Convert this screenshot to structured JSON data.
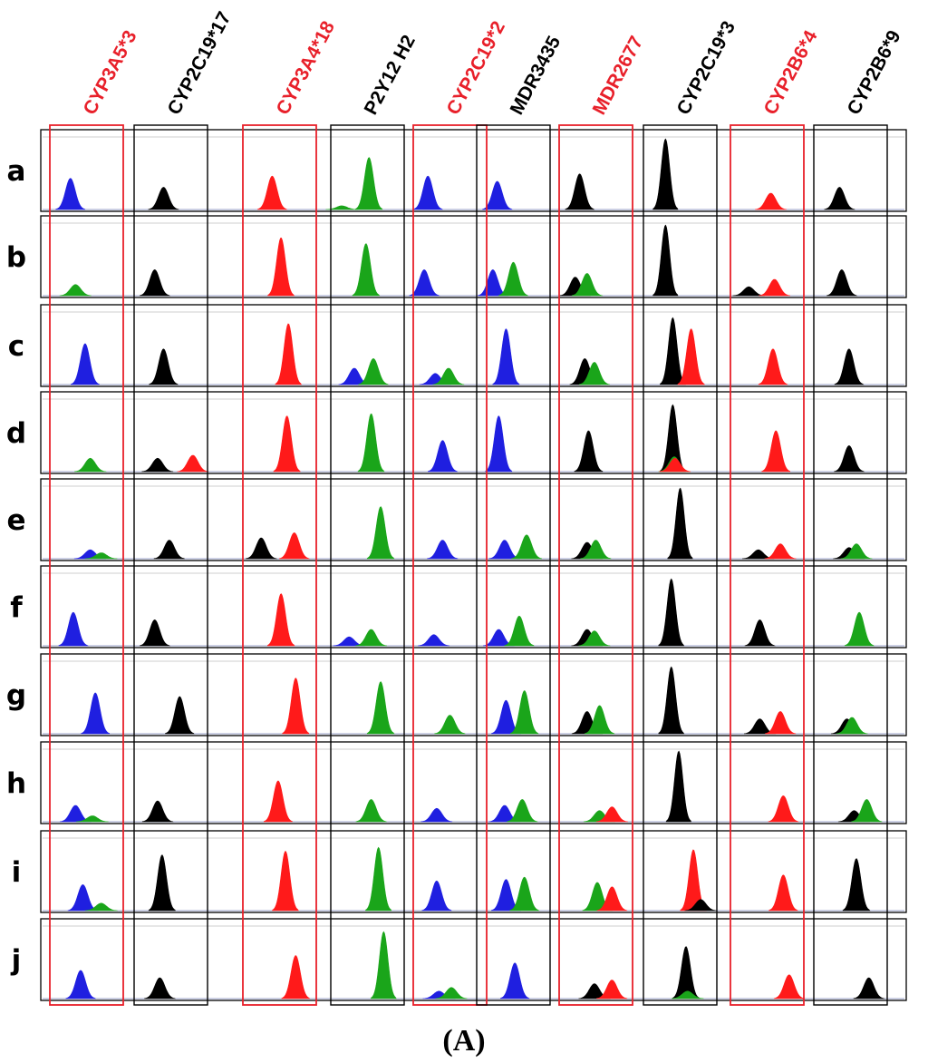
{
  "figure": {
    "panel_label": "(A)",
    "highlight_color": "#e8202a",
    "label_colors": {
      "highlight": "#e8202a",
      "normal": "#000000"
    },
    "peak_colors": {
      "blue": "#1f1fe0",
      "green": "#1aa51a",
      "red": "#ff1a1a",
      "black": "#000000"
    }
  },
  "chart_data": {
    "type": "electropherogram-grid",
    "title": "",
    "columns": [
      {
        "label": "CYP3A5*3",
        "highlight": true
      },
      {
        "label": "CYP2C19*17",
        "highlight": false
      },
      {
        "label": "CYP3A4*18",
        "highlight": true
      },
      {
        "label": "P2Y12 H2",
        "highlight": false
      },
      {
        "label": "CYP2C19*2",
        "highlight": true
      },
      {
        "label": "MDR3435",
        "highlight": false
      },
      {
        "label": "MDR2677",
        "highlight": true
      },
      {
        "label": "CYP2C19*3",
        "highlight": false
      },
      {
        "label": "CYP2B6*4",
        "highlight": true
      },
      {
        "label": "CYP2B6*9",
        "highlight": false
      }
    ],
    "rows": [
      "a",
      "b",
      "c",
      "d",
      "e",
      "f",
      "g",
      "h",
      "i",
      "j"
    ],
    "peak_encoding": "each peak = [color, relative position within cell 0-1, relative height 0-1]",
    "peaks": [
      [
        [
          [
            "blue",
            0.28,
            0.42
          ]
        ],
        [
          [
            "black",
            0.4,
            0.3
          ]
        ],
        [
          [
            "red",
            0.4,
            0.45
          ]
        ],
        [
          [
            "green",
            0.15,
            0.05
          ],
          [
            "green",
            0.52,
            0.7
          ]
        ],
        [
          [
            "blue",
            0.2,
            0.45
          ]
        ],
        [
          [
            "blue",
            0.28,
            0.38
          ]
        ],
        [
          [
            "black",
            0.28,
            0.48
          ]
        ],
        [
          [
            "black",
            0.3,
            0.95
          ]
        ],
        [
          [
            "red",
            0.55,
            0.22
          ]
        ],
        [
          [
            "black",
            0.35,
            0.3
          ]
        ]
      ],
      [
        [
          [
            "green",
            0.35,
            0.15
          ]
        ],
        [
          [
            "black",
            0.28,
            0.35
          ]
        ],
        [
          [
            "red",
            0.52,
            0.78
          ]
        ],
        [
          [
            "green",
            0.48,
            0.7
          ]
        ],
        [
          [
            "blue",
            0.15,
            0.35
          ]
        ],
        [
          [
            "blue",
            0.22,
            0.35
          ],
          [
            "green",
            0.5,
            0.45
          ]
        ],
        [
          [
            "black",
            0.22,
            0.25
          ],
          [
            "green",
            0.38,
            0.3
          ]
        ],
        [
          [
            "black",
            0.3,
            0.95
          ]
        ],
        [
          [
            "black",
            0.25,
            0.12
          ],
          [
            "red",
            0.6,
            0.22
          ]
        ],
        [
          [
            "black",
            0.38,
            0.35
          ]
        ]
      ],
      [
        [
          [
            "blue",
            0.48,
            0.55
          ]
        ],
        [
          [
            "black",
            0.4,
            0.48
          ]
        ],
        [
          [
            "red",
            0.62,
            0.82
          ]
        ],
        [
          [
            "blue",
            0.32,
            0.22
          ],
          [
            "green",
            0.58,
            0.35
          ]
        ],
        [
          [
            "blue",
            0.3,
            0.15
          ],
          [
            "green",
            0.48,
            0.22
          ]
        ],
        [
          [
            "blue",
            0.4,
            0.75
          ]
        ],
        [
          [
            "black",
            0.35,
            0.35
          ],
          [
            "green",
            0.48,
            0.3
          ]
        ],
        [
          [
            "black",
            0.4,
            0.9
          ],
          [
            "red",
            0.65,
            0.75
          ]
        ],
        [
          [
            "red",
            0.58,
            0.48
          ]
        ],
        [
          [
            "black",
            0.48,
            0.48
          ]
        ]
      ],
      [
        [
          [
            "green",
            0.55,
            0.18
          ]
        ],
        [
          [
            "black",
            0.32,
            0.18
          ],
          [
            "red",
            0.8,
            0.22
          ]
        ],
        [
          [
            "red",
            0.6,
            0.75
          ]
        ],
        [
          [
            "green",
            0.55,
            0.78
          ]
        ],
        [
          [
            "blue",
            0.4,
            0.42
          ]
        ],
        [
          [
            "blue",
            0.3,
            0.75
          ]
        ],
        [
          [
            "black",
            0.4,
            0.55
          ]
        ],
        [
          [
            "black",
            0.4,
            0.9
          ],
          [
            "green",
            0.42,
            0.2
          ],
          [
            "red",
            0.43,
            0.18
          ]
        ],
        [
          [
            "red",
            0.62,
            0.55
          ]
        ],
        [
          [
            "black",
            0.48,
            0.35
          ]
        ]
      ],
      [
        [
          [
            "blue",
            0.55,
            0.12
          ],
          [
            "green",
            0.7,
            0.08
          ]
        ],
        [
          [
            "black",
            0.48,
            0.25
          ]
        ],
        [
          [
            "black",
            0.25,
            0.28
          ],
          [
            "red",
            0.7,
            0.35
          ]
        ],
        [
          [
            "green",
            0.68,
            0.7
          ]
        ],
        [
          [
            "blue",
            0.4,
            0.25
          ]
        ],
        [
          [
            "blue",
            0.38,
            0.25
          ],
          [
            "green",
            0.68,
            0.32
          ]
        ],
        [
          [
            "black",
            0.38,
            0.22
          ],
          [
            "green",
            0.5,
            0.25
          ]
        ],
        [
          [
            "black",
            0.5,
            0.95
          ]
        ],
        [
          [
            "black",
            0.38,
            0.12
          ],
          [
            "red",
            0.68,
            0.2
          ]
        ],
        [
          [
            "black",
            0.48,
            0.15
          ],
          [
            "green",
            0.58,
            0.2
          ]
        ]
      ],
      [
        [
          [
            "blue",
            0.32,
            0.45
          ]
        ],
        [
          [
            "black",
            0.28,
            0.35
          ]
        ],
        [
          [
            "red",
            0.52,
            0.7
          ]
        ],
        [
          [
            "blue",
            0.25,
            0.12
          ],
          [
            "green",
            0.55,
            0.22
          ]
        ],
        [
          [
            "blue",
            0.28,
            0.15
          ]
        ],
        [
          [
            "blue",
            0.3,
            0.22
          ],
          [
            "green",
            0.58,
            0.4
          ]
        ],
        [
          [
            "black",
            0.38,
            0.22
          ],
          [
            "green",
            0.48,
            0.2
          ]
        ],
        [
          [
            "black",
            0.38,
            0.9
          ]
        ],
        [
          [
            "black",
            0.4,
            0.35
          ]
        ],
        [
          [
            "green",
            0.62,
            0.45
          ]
        ]
      ],
      [
        [
          [
            "blue",
            0.62,
            0.55
          ]
        ],
        [
          [
            "black",
            0.62,
            0.5
          ]
        ],
        [
          [
            "red",
            0.72,
            0.75
          ]
        ],
        [
          [
            "green",
            0.68,
            0.7
          ]
        ],
        [
          [
            "green",
            0.5,
            0.25
          ]
        ],
        [
          [
            "blue",
            0.4,
            0.45
          ],
          [
            "green",
            0.65,
            0.58
          ]
        ],
        [
          [
            "black",
            0.38,
            0.3
          ],
          [
            "green",
            0.55,
            0.38
          ]
        ],
        [
          [
            "black",
            0.38,
            0.9
          ]
        ],
        [
          [
            "black",
            0.4,
            0.2
          ],
          [
            "red",
            0.68,
            0.3
          ]
        ],
        [
          [
            "black",
            0.45,
            0.2
          ],
          [
            "green",
            0.52,
            0.22
          ]
        ]
      ],
      [
        [
          [
            "blue",
            0.35,
            0.22
          ],
          [
            "green",
            0.58,
            0.08
          ]
        ],
        [
          [
            "black",
            0.32,
            0.28
          ]
        ],
        [
          [
            "red",
            0.48,
            0.55
          ]
        ],
        [
          [
            "green",
            0.55,
            0.3
          ]
        ],
        [
          [
            "blue",
            0.32,
            0.18
          ]
        ],
        [
          [
            "blue",
            0.38,
            0.22
          ],
          [
            "green",
            0.62,
            0.3
          ]
        ],
        [
          [
            "green",
            0.55,
            0.15
          ],
          [
            "red",
            0.72,
            0.2
          ]
        ],
        [
          [
            "black",
            0.48,
            0.95
          ]
        ],
        [
          [
            "red",
            0.72,
            0.35
          ]
        ],
        [
          [
            "black",
            0.55,
            0.15
          ],
          [
            "green",
            0.72,
            0.3
          ]
        ]
      ],
      [
        [
          [
            "blue",
            0.45,
            0.35
          ],
          [
            "green",
            0.7,
            0.1
          ]
        ],
        [
          [
            "black",
            0.38,
            0.75
          ]
        ],
        [
          [
            "red",
            0.58,
            0.8
          ]
        ],
        [
          [
            "green",
            0.65,
            0.85
          ]
        ],
        [
          [
            "blue",
            0.32,
            0.4
          ]
        ],
        [
          [
            "blue",
            0.4,
            0.42
          ],
          [
            "green",
            0.65,
            0.45
          ]
        ],
        [
          [
            "green",
            0.52,
            0.38
          ],
          [
            "red",
            0.72,
            0.32
          ]
        ],
        [
          [
            "red",
            0.68,
            0.82
          ],
          [
            "black",
            0.78,
            0.15
          ]
        ],
        [
          [
            "red",
            0.72,
            0.48
          ]
        ],
        [
          [
            "black",
            0.58,
            0.7
          ]
        ]
      ],
      [
        [
          [
            "blue",
            0.42,
            0.38
          ]
        ],
        [
          [
            "black",
            0.35,
            0.28
          ]
        ],
        [
          [
            "red",
            0.72,
            0.58
          ]
        ],
        [
          [
            "green",
            0.72,
            0.9
          ]
        ],
        [
          [
            "blue",
            0.35,
            0.1
          ],
          [
            "green",
            0.52,
            0.15
          ]
        ],
        [
          [
            "blue",
            0.52,
            0.48
          ]
        ],
        [
          [
            "black",
            0.48,
            0.2
          ],
          [
            "red",
            0.72,
            0.25
          ]
        ],
        [
          [
            "black",
            0.58,
            0.7
          ],
          [
            "green",
            0.6,
            0.1
          ]
        ],
        [
          [
            "red",
            0.8,
            0.32
          ]
        ],
        [
          [
            "black",
            0.75,
            0.28
          ]
        ]
      ]
    ]
  }
}
